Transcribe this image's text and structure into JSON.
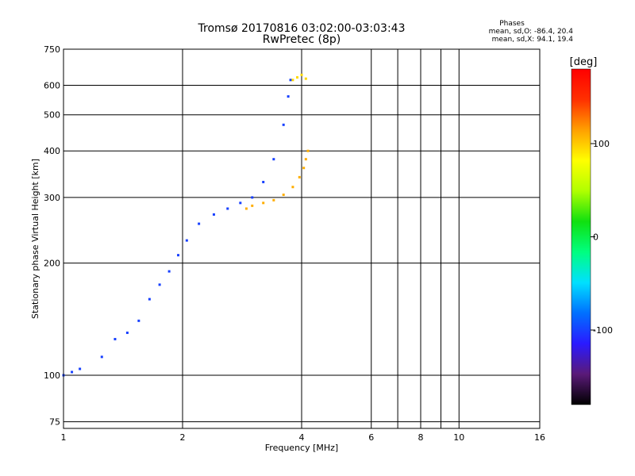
{
  "chart_data": {
    "type": "scatter",
    "title": "Tromsø 20170816 03:02:00-03:03:43",
    "subtitle": "RwPretec (8p)",
    "xlabel": "Frequency [MHz]",
    "ylabel": "Stationary phase Virtual Height [km]",
    "x_scale": "log2",
    "y_scale": "log",
    "xlim": [
      1,
      16
    ],
    "ylim": [
      72,
      750
    ],
    "x_ticks": [
      1,
      2,
      4,
      6,
      8,
      10,
      16
    ],
    "x_minor_ticks": [
      7,
      9
    ],
    "y_ticks": [
      75,
      100,
      200,
      300,
      400,
      500,
      600,
      750
    ],
    "grid": true,
    "phases_box": {
      "heading": "Phases",
      "line_o": "mean, sd,O: -86.4, 20.4",
      "line_x": "mean, sd,X:  94.1, 19.4"
    },
    "colorbar": {
      "label": "[deg]",
      "range": [
        -180,
        180
      ],
      "ticks": [
        100,
        0,
        -100
      ],
      "colors": [
        "#000000",
        "#5a1a78",
        "#2a1aff",
        "#0070ff",
        "#00e0ff",
        "#00ff80",
        "#10e010",
        "#b0ff00",
        "#ffff00",
        "#ffa000",
        "#ff3000",
        "#ff0000"
      ]
    },
    "series": [
      {
        "type": "o-trace",
        "phase": -100,
        "points": [
          [
            1.0,
            100
          ],
          [
            1.05,
            102
          ],
          [
            1.1,
            104
          ],
          [
            1.25,
            112
          ],
          [
            1.35,
            125
          ],
          [
            1.45,
            130
          ],
          [
            1.55,
            140
          ],
          [
            1.65,
            160
          ],
          [
            1.75,
            175
          ],
          [
            1.85,
            190
          ],
          [
            1.95,
            210
          ],
          [
            2.05,
            230
          ],
          [
            2.2,
            255
          ],
          [
            2.4,
            270
          ],
          [
            2.6,
            280
          ],
          [
            2.8,
            290
          ],
          [
            3.0,
            300
          ],
          [
            3.2,
            330
          ],
          [
            3.4,
            380
          ],
          [
            3.6,
            470
          ],
          [
            3.7,
            560
          ],
          [
            3.75,
            620
          ]
        ]
      },
      {
        "type": "x-trace",
        "phase": 110,
        "points": [
          [
            2.9,
            280
          ],
          [
            3.0,
            285
          ],
          [
            3.2,
            290
          ],
          [
            3.4,
            295
          ],
          [
            3.6,
            305
          ],
          [
            3.8,
            320
          ],
          [
            3.95,
            340
          ],
          [
            4.05,
            360
          ],
          [
            4.1,
            380
          ],
          [
            4.15,
            400
          ]
        ]
      },
      {
        "type": "x-upper",
        "phase": 95,
        "points": [
          [
            3.8,
            620
          ],
          [
            3.9,
            630
          ],
          [
            4.0,
            640
          ],
          [
            4.1,
            625
          ]
        ]
      }
    ]
  }
}
